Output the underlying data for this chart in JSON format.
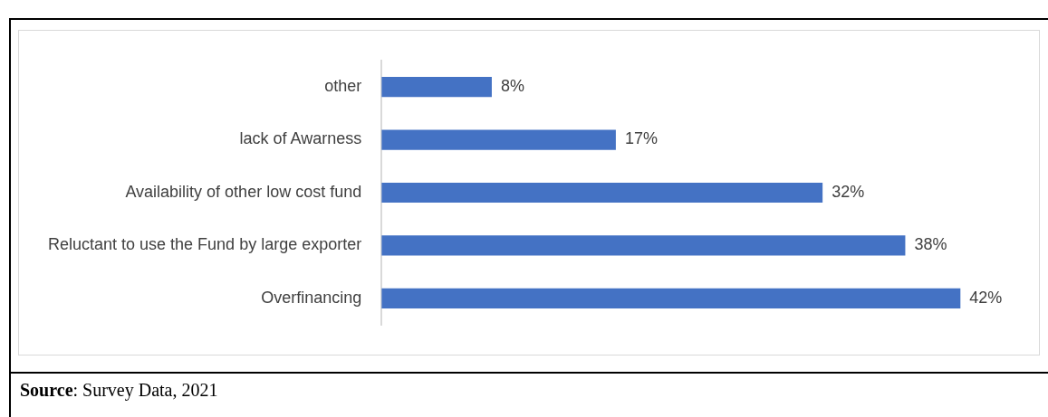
{
  "chart_data": {
    "type": "bar",
    "orientation": "horizontal",
    "categories": [
      "other",
      "lack of Awarness",
      "Availability of other low cost fund",
      "Reluctant to use the Fund by large exporter",
      "Overfinancing"
    ],
    "values": [
      8,
      17,
      32,
      38,
      42
    ],
    "value_labels": [
      "8%",
      "17%",
      "32%",
      "38%",
      "42%"
    ],
    "color": "#4472c4",
    "legend": false,
    "annotations": [
      "Source: Survey Data, 2021"
    ]
  }
}
